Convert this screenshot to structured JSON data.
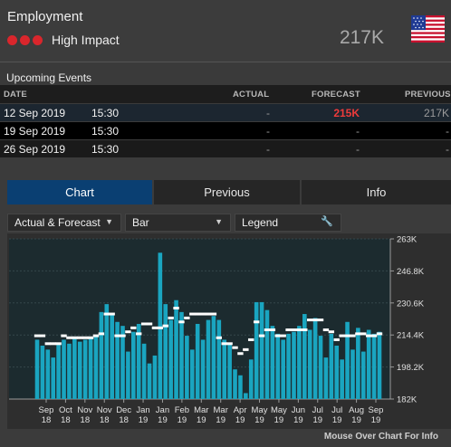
{
  "header": {
    "title": "Employment",
    "impact_label": "High Impact",
    "impact_color": "#d9262c",
    "headline_value": "217K",
    "flag_icon": "us-flag-icon"
  },
  "upcoming": {
    "title": "Upcoming Events",
    "columns": [
      "DATE",
      "ACTUAL",
      "FORECAST",
      "PREVIOUS"
    ],
    "rows": [
      {
        "date": "12 Sep 2019",
        "time": "15:30",
        "actual": "-",
        "forecast": "215K",
        "previous": "217K"
      },
      {
        "date": "19 Sep 2019",
        "time": "15:30",
        "actual": "-",
        "forecast": "-",
        "previous": "-"
      },
      {
        "date": "26 Sep 2019",
        "time": "15:30",
        "actual": "-",
        "forecast": "-",
        "previous": "-"
      }
    ]
  },
  "tabs": [
    {
      "label": "Chart",
      "active": true
    },
    {
      "label": "Previous",
      "active": false
    },
    {
      "label": "Info",
      "active": false
    }
  ],
  "controls": {
    "series": "Actual & Forecast",
    "chart_type": "Bar",
    "legend": "Legend"
  },
  "footer": "Mouse Over Chart For Info",
  "colors": {
    "bar": "#1aa5c0",
    "marker": "#ffffff",
    "plot_bg": "#1c2b2f",
    "accent_tab": "#0a3f72"
  },
  "chart_data": {
    "type": "bar",
    "title": "",
    "xlabel": "",
    "ylabel": "",
    "ylim": [
      182,
      263
    ],
    "y_ticks": [
      "263K",
      "246.8K",
      "230.6K",
      "214.4K",
      "198.2K",
      "182K"
    ],
    "x_ticks": [
      {
        "month": "Sep",
        "year": "18"
      },
      {
        "month": "Oct",
        "year": "18"
      },
      {
        "month": "Nov",
        "year": "18"
      },
      {
        "month": "Nov",
        "year": "18"
      },
      {
        "month": "Dec",
        "year": "18"
      },
      {
        "month": "Jan",
        "year": "19"
      },
      {
        "month": "Jan",
        "year": "19"
      },
      {
        "month": "Feb",
        "year": "19"
      },
      {
        "month": "Mar",
        "year": "19"
      },
      {
        "month": "Mar",
        "year": "19"
      },
      {
        "month": "Apr",
        "year": "19"
      },
      {
        "month": "May",
        "year": "19"
      },
      {
        "month": "May",
        "year": "19"
      },
      {
        "month": "Jun",
        "year": "19"
      },
      {
        "month": "Jul",
        "year": "19"
      },
      {
        "month": "Jul",
        "year": "19"
      },
      {
        "month": "Aug",
        "year": "19"
      },
      {
        "month": "Sep",
        "year": "19"
      }
    ],
    "actual": [
      212,
      209,
      207,
      203,
      210,
      212,
      210,
      213,
      211,
      212,
      213,
      214,
      226,
      230,
      225,
      221,
      219,
      206,
      216,
      220,
      210,
      200,
      204,
      256,
      230,
      222,
      232,
      226,
      214,
      207,
      220,
      212,
      222,
      224,
      222,
      212,
      210,
      197,
      194,
      185,
      202,
      231,
      231,
      227,
      219,
      215,
      212,
      215,
      216,
      219,
      225,
      217,
      223,
      214,
      203,
      215,
      209,
      202,
      221,
      207,
      218,
      206,
      217,
      215,
      216
    ],
    "forecast": [
      214,
      214,
      210,
      210,
      210,
      214,
      213,
      213,
      213,
      213,
      213,
      214,
      215,
      225,
      225,
      214,
      214,
      216,
      218,
      215,
      220,
      220,
      218,
      218,
      219,
      223,
      228,
      221,
      223,
      225,
      225,
      225,
      225,
      225,
      213,
      210,
      210,
      208,
      205,
      207,
      212,
      221,
      214,
      217,
      217,
      214,
      214,
      217,
      217,
      217,
      217,
      222,
      222,
      222,
      217,
      216,
      212,
      214,
      214,
      214,
      215,
      215,
      214,
      214,
      215
    ]
  }
}
